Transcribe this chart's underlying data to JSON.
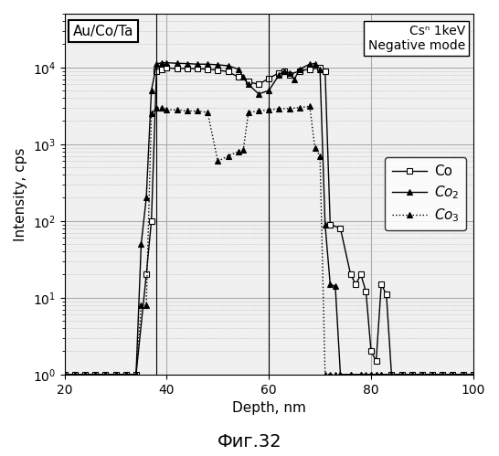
{
  "title_box": "Au/Co/Ta",
  "annotation": "Csⁿ 1keV\nNegative mode",
  "xlabel": "Depth, nm",
  "ylabel": "Intensity, cps",
  "caption": "Фиг.32",
  "xlim": [
    20,
    100
  ],
  "ylim_log": [
    1,
    50000
  ],
  "vlines": [
    38,
    60
  ],
  "Co_x": [
    20,
    22,
    24,
    26,
    28,
    30,
    32,
    34,
    36,
    37,
    38,
    39,
    40,
    42,
    44,
    46,
    48,
    50,
    52,
    54,
    56,
    58,
    60,
    62,
    63,
    64,
    66,
    68,
    70,
    71,
    72,
    74,
    76,
    77,
    78,
    79,
    80,
    81,
    82,
    83,
    84,
    86,
    88,
    90,
    92,
    94,
    96,
    98,
    100
  ],
  "Co_y": [
    1,
    1,
    1,
    1,
    1,
    1,
    1,
    1,
    20,
    100,
    9000,
    9500,
    9800,
    9700,
    9700,
    9600,
    9500,
    9200,
    8800,
    7500,
    6500,
    6000,
    7200,
    8500,
    8800,
    8000,
    9000,
    9500,
    9800,
    9000,
    90,
    80,
    20,
    15,
    20,
    12,
    2,
    1.5,
    15,
    11,
    1,
    1,
    1,
    1,
    1,
    1,
    1,
    1,
    1
  ],
  "Co2_x": [
    20,
    22,
    24,
    26,
    28,
    30,
    32,
    34,
    35,
    36,
    37,
    38,
    39,
    40,
    42,
    44,
    46,
    48,
    50,
    52,
    54,
    55,
    56,
    58,
    60,
    62,
    63,
    64,
    65,
    66,
    68,
    69,
    70,
    71,
    72,
    73,
    74,
    76,
    78,
    79,
    80,
    81,
    82,
    84,
    86,
    88,
    90,
    92,
    94,
    96,
    98,
    100
  ],
  "Co2_y": [
    1,
    1,
    1,
    1,
    1,
    1,
    1,
    1,
    50,
    200,
    5000,
    11000,
    11500,
    11500,
    11300,
    11200,
    11000,
    11000,
    10800,
    10500,
    9500,
    7500,
    6000,
    4500,
    5000,
    8000,
    9000,
    8500,
    7000,
    9500,
    11000,
    11200,
    9500,
    90,
    15,
    14,
    1,
    1,
    1,
    1,
    1,
    1,
    1,
    1,
    1,
    1,
    1,
    1,
    1,
    1,
    1,
    1
  ],
  "Co3_x": [
    20,
    22,
    24,
    26,
    28,
    30,
    32,
    34,
    35,
    36,
    37,
    38,
    39,
    40,
    42,
    44,
    46,
    48,
    50,
    52,
    54,
    55,
    56,
    58,
    60,
    62,
    64,
    66,
    68,
    69,
    70,
    71,
    72,
    73,
    74,
    76,
    78,
    80,
    81,
    82,
    84,
    86,
    88,
    90,
    92,
    94,
    96,
    98,
    100
  ],
  "Co3_y": [
    1,
    1,
    1,
    1,
    1,
    1,
    1,
    1,
    8,
    8,
    2500,
    3000,
    3000,
    2800,
    2800,
    2700,
    2700,
    2600,
    600,
    700,
    800,
    850,
    2600,
    2700,
    2800,
    2900,
    2900,
    3000,
    3100,
    900,
    700,
    1,
    1,
    1,
    1,
    1,
    1,
    1,
    1,
    1,
    1,
    1,
    1,
    1,
    1,
    1,
    1,
    1,
    1
  ],
  "grid_color": "#aaaaaa",
  "line_color": "#000000",
  "bg_color": "#f0f0f0",
  "plot_bg": "#ffffff"
}
